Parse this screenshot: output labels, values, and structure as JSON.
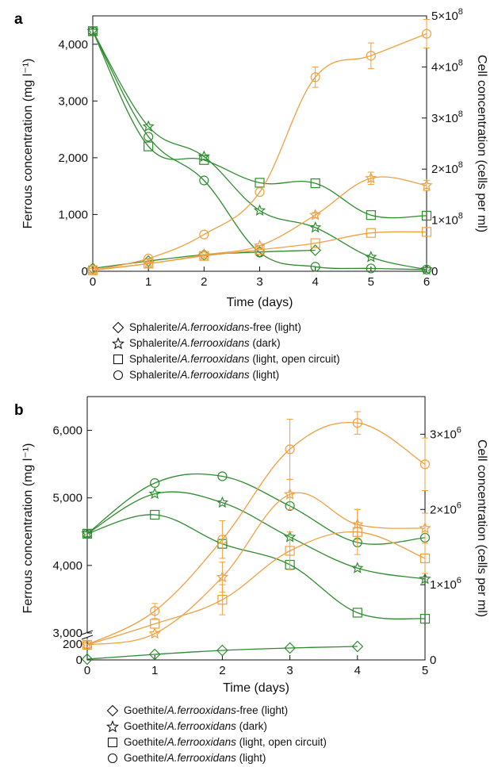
{
  "panels": [
    {
      "label": "a",
      "xlabel": "Time (days)",
      "ylabel": "Ferrous concentration (mg l⁻¹)",
      "y2label": "Cell concentration (cells per ml)",
      "xticks": [
        "0",
        "1",
        "2",
        "3",
        "4",
        "5",
        "6"
      ],
      "yticks": [
        "0",
        "1,000",
        "2,000",
        "3,000",
        "4,000"
      ],
      "y2ticks": [
        "0",
        "1×10",
        "2×10",
        "3×10",
        "4×10",
        "5×10"
      ],
      "y2tick_exponent": "8",
      "legend": [
        {
          "symbol": "diamond",
          "pre": "Sphalerite/",
          "italic": "A.ferrooxidans",
          "post": "-free (light)"
        },
        {
          "symbol": "star",
          "pre": "Sphalerite/",
          "italic": "A.ferrooxidans",
          "post": " (dark)"
        },
        {
          "symbol": "square",
          "pre": "Sphalerite/",
          "italic": "A.ferrooxidans",
          "post": " (light, open circuit)"
        },
        {
          "symbol": "circle",
          "pre": "Sphalerite/",
          "italic": "A.ferrooxidans",
          "post": " (light)"
        }
      ]
    },
    {
      "label": "b",
      "xlabel": "Time (days)",
      "ylabel": "Ferrous concentration (mg l⁻¹)",
      "y2label": "Cell concentration (cells per ml)",
      "xticks": [
        "0",
        "1",
        "2",
        "3",
        "4",
        "5"
      ],
      "yticks": [
        "0",
        "200",
        "3,000",
        "4,000",
        "5,000",
        "6,000"
      ],
      "y2ticks": [
        "0",
        "1×10",
        "2×10",
        "3×10"
      ],
      "y2tick_exponent": "6",
      "legend": [
        {
          "symbol": "diamond",
          "pre": "Goethite/",
          "italic": "A.ferrooxidans",
          "post": "-free (light)"
        },
        {
          "symbol": "star",
          "pre": "Goethite/",
          "italic": "A.ferrooxidans",
          "post": " (dark)"
        },
        {
          "symbol": "square",
          "pre": "Goethite/",
          "italic": "A.ferrooxidans",
          "post": " (light, open circuit)"
        },
        {
          "symbol": "circle",
          "pre": "Goethite/",
          "italic": "A.ferrooxidans",
          "post": " (light)"
        }
      ]
    }
  ],
  "colors": {
    "ferrous": "#2e8b2e",
    "cells": "#f0a040",
    "axis": "#111111"
  },
  "chart_data": [
    {
      "type": "line",
      "panel": "a",
      "x": [
        0,
        1,
        2,
        3,
        4,
        5,
        6
      ],
      "xlim": [
        0,
        6
      ],
      "ylim": [
        0,
        4500
      ],
      "y2lim": [
        0,
        500000000
      ],
      "grid": false,
      "series": [
        {
          "axis": "left",
          "color": "ferrous",
          "marker": "diamond",
          "values": [
            50,
            180,
            290,
            340,
            370,
            null,
            null
          ],
          "err": null
        },
        {
          "axis": "left",
          "color": "ferrous",
          "marker": "star",
          "values": [
            4230,
            2550,
            2020,
            1070,
            770,
            250,
            30
          ],
          "err": null
        },
        {
          "axis": "left",
          "color": "ferrous",
          "marker": "square",
          "values": [
            4230,
            2200,
            1960,
            1560,
            1550,
            990,
            980
          ],
          "err": null
        },
        {
          "axis": "left",
          "color": "ferrous",
          "marker": "circle",
          "values": [
            4230,
            2370,
            1600,
            330,
            80,
            50,
            30
          ],
          "err": null
        },
        {
          "axis": "right",
          "color": "cells",
          "marker": "star",
          "values": [
            2000000,
            15000000,
            32000000,
            50000000,
            110000000,
            182000000,
            168000000
          ],
          "err": [
            null,
            null,
            null,
            null,
            5000000,
            12000000,
            10000000
          ]
        },
        {
          "axis": "right",
          "color": "cells",
          "marker": "square",
          "values": [
            2000000,
            15000000,
            30000000,
            42000000,
            55000000,
            75000000,
            77000000
          ],
          "err": null
        },
        {
          "axis": "right",
          "color": "cells",
          "marker": "circle",
          "values": [
            2000000,
            25000000,
            72000000,
            155000000,
            380000000,
            422000000,
            465000000
          ],
          "err": [
            null,
            null,
            null,
            null,
            20000000,
            25000000,
            28000000
          ]
        }
      ]
    },
    {
      "type": "line",
      "panel": "b",
      "x": [
        0,
        1,
        2,
        3,
        4,
        5
      ],
      "xlim": [
        0,
        5
      ],
      "ylim": [
        0,
        6500
      ],
      "ylim_note": "broken axis: 0-200 and 3,000-6,500",
      "y2lim": [
        0,
        3500000
      ],
      "grid": false,
      "series": [
        {
          "axis": "left",
          "color": "ferrous",
          "marker": "diamond",
          "values": [
            10,
            70,
            120,
            150,
            170,
            null
          ],
          "err": null
        },
        {
          "axis": "left",
          "color": "ferrous",
          "marker": "star",
          "values": [
            4470,
            5060,
            4930,
            4420,
            3960,
            3800
          ],
          "err": null
        },
        {
          "axis": "left",
          "color": "ferrous",
          "marker": "square",
          "values": [
            4470,
            4750,
            4320,
            4010,
            3300,
            3210
          ],
          "err": null
        },
        {
          "axis": "left",
          "color": "ferrous",
          "marker": "circle",
          "values": [
            4470,
            5220,
            5320,
            4880,
            4340,
            4410
          ],
          "err": null
        },
        {
          "axis": "right",
          "color": "cells",
          "marker": "star",
          "values": [
            200000,
            350000,
            1100000,
            2200000,
            1800000,
            1750000
          ],
          "err": [
            null,
            null,
            200000,
            200000,
            200000,
            200000
          ]
        },
        {
          "axis": "right",
          "color": "cells",
          "marker": "square",
          "values": [
            200000,
            480000,
            800000,
            1450000,
            1700000,
            1350000
          ],
          "err": [
            null,
            null,
            200000,
            250000,
            300000,
            200000
          ]
        },
        {
          "axis": "right",
          "color": "cells",
          "marker": "circle",
          "values": [
            200000,
            650000,
            1600000,
            2800000,
            3150000,
            2600000
          ],
          "err": [
            null,
            100000,
            250000,
            400000,
            150000,
            350000
          ]
        }
      ]
    }
  ]
}
